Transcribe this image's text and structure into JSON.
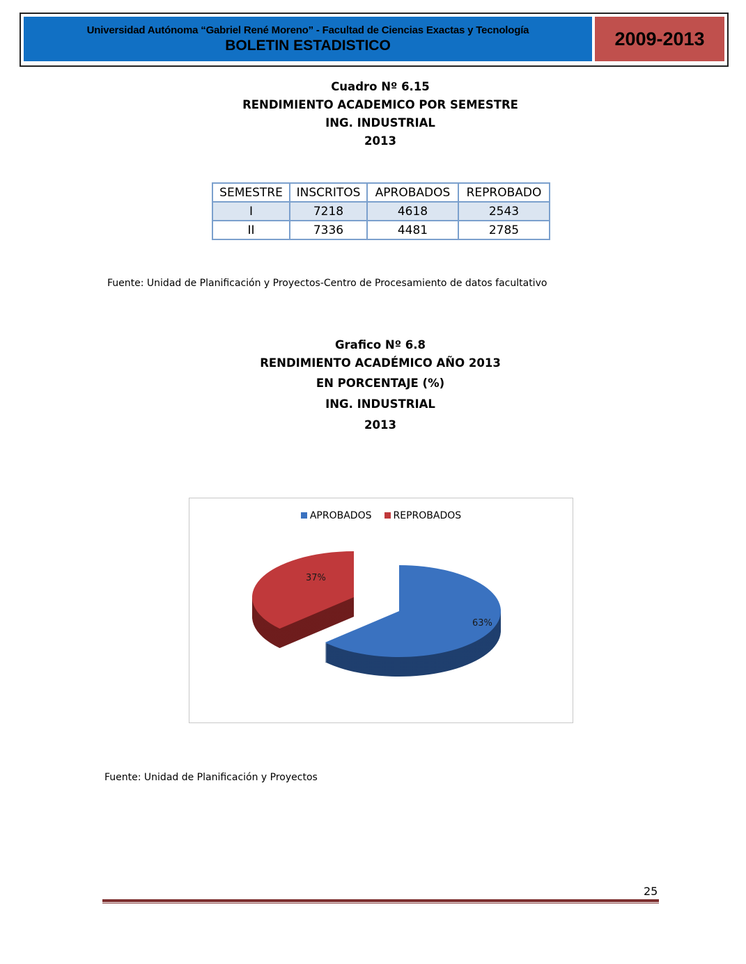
{
  "header": {
    "institution": "Universidad Autónoma “Gabriel René Moreno” - Facultad de Ciencias Exactas y Tecnología",
    "bulletin": "BOLETIN ESTADISTICO",
    "years": "2009-2013",
    "colors": {
      "blue": "#1170c4",
      "red": "#c0504d"
    }
  },
  "table_title": [
    "Cuadro Nº 6.15",
    "RENDIMIENTO ACADEMICO POR SEMESTRE",
    "ING.  INDUSTRIAL",
    "2013"
  ],
  "table": {
    "headers": [
      "SEMESTRE",
      "INSCRITOS",
      "APROBADOS",
      "REPROBADO"
    ],
    "rows": [
      [
        "I",
        "7218",
        "4618",
        "2543"
      ],
      [
        "II",
        "7336",
        "4481",
        "2785"
      ]
    ]
  },
  "table_source": "Fuente: Unidad de Planificación y Proyectos-Centro de Procesamiento de datos facultativo",
  "chart_title": [
    "Grafico Nº 6.8",
    "RENDIMIENTO ACADÉMICO AÑO 2013",
    "EN PORCENTAJE (%)",
    "ING.  INDUSTRIAL",
    "2013"
  ],
  "chart_data": {
    "type": "pie",
    "style": "3d-exploded",
    "legend_position": "top",
    "categories": [
      "APROBADOS",
      "REPROBADOS"
    ],
    "values": [
      63,
      37
    ],
    "labels": [
      "63%",
      "37%"
    ],
    "colors": [
      "#3a72c0",
      "#c0393b"
    ]
  },
  "chart_source": "Fuente: Unidad de Planificación y Proyectos",
  "page_number": "25"
}
